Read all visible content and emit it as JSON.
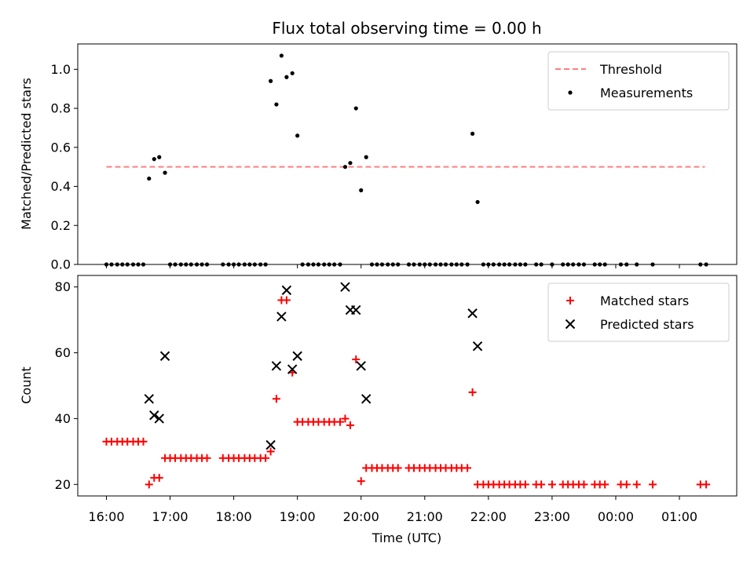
{
  "chart_data": {
    "type": "scatter",
    "title": "Flux total observing time = 0.00 h",
    "xlabel": "Time (UTC)",
    "xlim_hours": [
      15.55,
      25.9
    ],
    "x_ticks": [
      {
        "value": 16,
        "label": "16:00"
      },
      {
        "value": 17,
        "label": "17:00"
      },
      {
        "value": 18,
        "label": "18:00"
      },
      {
        "value": 19,
        "label": "19:00"
      },
      {
        "value": 20,
        "label": "20:00"
      },
      {
        "value": 21,
        "label": "21:00"
      },
      {
        "value": 22,
        "label": "22:00"
      },
      {
        "value": 23,
        "label": "23:00"
      },
      {
        "value": 24,
        "label": "00:00"
      },
      {
        "value": 25,
        "label": "01:00"
      }
    ],
    "panels": [
      {
        "id": "ratio",
        "ylabel": "Matched/Predicted stars",
        "ylim": [
          0,
          1.13
        ],
        "y_ticks": [
          {
            "value": 0,
            "label": "0.0"
          },
          {
            "value": 0.2,
            "label": "0.2"
          },
          {
            "value": 0.4,
            "label": "0.4"
          },
          {
            "value": 0.6,
            "label": "0.6"
          },
          {
            "value": 0.8,
            "label": "0.8"
          },
          {
            "value": 1.0,
            "label": "1.0"
          }
        ],
        "legend_position": "top-right",
        "threshold": {
          "name": "Threshold",
          "value": 0.5,
          "x_range": [
            16.0,
            25.4
          ],
          "color": "#ff7f7f"
        },
        "series": [
          {
            "name": "Measurements",
            "marker": "dot",
            "color": "#000000",
            "points": [
              [
                16.0,
                0
              ],
              [
                16.08,
                0
              ],
              [
                16.17,
                0
              ],
              [
                16.25,
                0
              ],
              [
                16.33,
                0
              ],
              [
                16.42,
                0
              ],
              [
                16.5,
                0
              ],
              [
                16.58,
                0
              ],
              [
                16.67,
                0.44
              ],
              [
                16.75,
                0.54
              ],
              [
                16.83,
                0.55
              ],
              [
                16.92,
                0.47
              ],
              [
                17.0,
                0
              ],
              [
                17.08,
                0
              ],
              [
                17.17,
                0
              ],
              [
                17.25,
                0
              ],
              [
                17.33,
                0
              ],
              [
                17.42,
                0
              ],
              [
                17.5,
                0
              ],
              [
                17.58,
                0
              ],
              [
                17.83,
                0
              ],
              [
                17.92,
                0
              ],
              [
                18.0,
                0
              ],
              [
                18.08,
                0
              ],
              [
                18.17,
                0
              ],
              [
                18.25,
                0
              ],
              [
                18.33,
                0
              ],
              [
                18.42,
                0
              ],
              [
                18.5,
                0
              ],
              [
                18.58,
                0.94
              ],
              [
                18.67,
                0.82
              ],
              [
                18.75,
                1.07
              ],
              [
                18.83,
                0.96
              ],
              [
                18.92,
                0.98
              ],
              [
                19.0,
                0.66
              ],
              [
                19.08,
                0
              ],
              [
                19.17,
                0
              ],
              [
                19.25,
                0
              ],
              [
                19.33,
                0
              ],
              [
                19.42,
                0
              ],
              [
                19.5,
                0
              ],
              [
                19.58,
                0
              ],
              [
                19.67,
                0
              ],
              [
                19.75,
                0.5
              ],
              [
                19.83,
                0.52
              ],
              [
                19.92,
                0.8
              ],
              [
                20.0,
                0.38
              ],
              [
                20.08,
                0.55
              ],
              [
                20.17,
                0
              ],
              [
                20.25,
                0
              ],
              [
                20.33,
                0
              ],
              [
                20.42,
                0
              ],
              [
                20.5,
                0
              ],
              [
                20.58,
                0
              ],
              [
                20.75,
                0
              ],
              [
                20.83,
                0
              ],
              [
                20.92,
                0
              ],
              [
                21.0,
                0
              ],
              [
                21.08,
                0
              ],
              [
                21.17,
                0
              ],
              [
                21.25,
                0
              ],
              [
                21.33,
                0
              ],
              [
                21.42,
                0
              ],
              [
                21.5,
                0
              ],
              [
                21.58,
                0
              ],
              [
                21.67,
                0
              ],
              [
                21.75,
                0.67
              ],
              [
                21.83,
                0.32
              ],
              [
                21.92,
                0
              ],
              [
                22.0,
                0
              ],
              [
                22.08,
                0
              ],
              [
                22.17,
                0
              ],
              [
                22.25,
                0
              ],
              [
                22.33,
                0
              ],
              [
                22.42,
                0
              ],
              [
                22.5,
                0
              ],
              [
                22.58,
                0
              ],
              [
                22.75,
                0
              ],
              [
                22.83,
                0
              ],
              [
                23.0,
                0
              ],
              [
                23.17,
                0
              ],
              [
                23.25,
                0
              ],
              [
                23.33,
                0
              ],
              [
                23.42,
                0
              ],
              [
                23.5,
                0
              ],
              [
                23.67,
                0
              ],
              [
                23.75,
                0
              ],
              [
                23.83,
                0
              ],
              [
                24.08,
                0
              ],
              [
                24.17,
                0
              ],
              [
                24.33,
                0
              ],
              [
                24.58,
                0
              ],
              [
                25.33,
                0
              ],
              [
                25.42,
                0
              ]
            ]
          }
        ]
      },
      {
        "id": "counts",
        "ylabel": "Count",
        "ylim": [
          16.5,
          83.5
        ],
        "y_ticks": [
          {
            "value": 20,
            "label": "20"
          },
          {
            "value": 40,
            "label": "40"
          },
          {
            "value": 60,
            "label": "60"
          },
          {
            "value": 80,
            "label": "80"
          }
        ],
        "legend_position": "top-right",
        "series": [
          {
            "name": "Matched stars",
            "marker": "plus",
            "color": "#ff0000",
            "points": [
              [
                16.0,
                33
              ],
              [
                16.08,
                33
              ],
              [
                16.17,
                33
              ],
              [
                16.25,
                33
              ],
              [
                16.33,
                33
              ],
              [
                16.42,
                33
              ],
              [
                16.5,
                33
              ],
              [
                16.58,
                33
              ],
              [
                16.67,
                20
              ],
              [
                16.75,
                22
              ],
              [
                16.83,
                22
              ],
              [
                16.92,
                28
              ],
              [
                17.0,
                28
              ],
              [
                17.08,
                28
              ],
              [
                17.17,
                28
              ],
              [
                17.25,
                28
              ],
              [
                17.33,
                28
              ],
              [
                17.42,
                28
              ],
              [
                17.5,
                28
              ],
              [
                17.58,
                28
              ],
              [
                17.83,
                28
              ],
              [
                17.92,
                28
              ],
              [
                18.0,
                28
              ],
              [
                18.08,
                28
              ],
              [
                18.17,
                28
              ],
              [
                18.25,
                28
              ],
              [
                18.33,
                28
              ],
              [
                18.42,
                28
              ],
              [
                18.5,
                28
              ],
              [
                18.58,
                30
              ],
              [
                18.67,
                46
              ],
              [
                18.75,
                76
              ],
              [
                18.83,
                76
              ],
              [
                18.92,
                54
              ],
              [
                19.0,
                39
              ],
              [
                19.08,
                39
              ],
              [
                19.17,
                39
              ],
              [
                19.25,
                39
              ],
              [
                19.33,
                39
              ],
              [
                19.42,
                39
              ],
              [
                19.5,
                39
              ],
              [
                19.58,
                39
              ],
              [
                19.67,
                39
              ],
              [
                19.75,
                40
              ],
              [
                19.83,
                38
              ],
              [
                19.92,
                58
              ],
              [
                20.0,
                21
              ],
              [
                20.08,
                25
              ],
              [
                20.17,
                25
              ],
              [
                20.25,
                25
              ],
              [
                20.33,
                25
              ],
              [
                20.42,
                25
              ],
              [
                20.5,
                25
              ],
              [
                20.58,
                25
              ],
              [
                20.75,
                25
              ],
              [
                20.83,
                25
              ],
              [
                20.92,
                25
              ],
              [
                21.0,
                25
              ],
              [
                21.08,
                25
              ],
              [
                21.17,
                25
              ],
              [
                21.25,
                25
              ],
              [
                21.33,
                25
              ],
              [
                21.42,
                25
              ],
              [
                21.5,
                25
              ],
              [
                21.58,
                25
              ],
              [
                21.67,
                25
              ],
              [
                21.75,
                48
              ],
              [
                21.83,
                20
              ],
              [
                21.92,
                20
              ],
              [
                22.0,
                20
              ],
              [
                22.08,
                20
              ],
              [
                22.17,
                20
              ],
              [
                22.25,
                20
              ],
              [
                22.33,
                20
              ],
              [
                22.42,
                20
              ],
              [
                22.5,
                20
              ],
              [
                22.58,
                20
              ],
              [
                22.75,
                20
              ],
              [
                22.83,
                20
              ],
              [
                23.0,
                20
              ],
              [
                23.17,
                20
              ],
              [
                23.25,
                20
              ],
              [
                23.33,
                20
              ],
              [
                23.42,
                20
              ],
              [
                23.5,
                20
              ],
              [
                23.67,
                20
              ],
              [
                23.75,
                20
              ],
              [
                23.83,
                20
              ],
              [
                24.08,
                20
              ],
              [
                24.17,
                20
              ],
              [
                24.33,
                20
              ],
              [
                24.58,
                20
              ],
              [
                25.33,
                20
              ],
              [
                25.42,
                20
              ]
            ]
          },
          {
            "name": "Predicted stars",
            "marker": "x",
            "color": "#000000",
            "points": [
              [
                16.67,
                46
              ],
              [
                16.75,
                41
              ],
              [
                16.83,
                40
              ],
              [
                16.92,
                59
              ],
              [
                18.58,
                32
              ],
              [
                18.67,
                56
              ],
              [
                18.75,
                71
              ],
              [
                18.83,
                79
              ],
              [
                18.92,
                55
              ],
              [
                19.0,
                59
              ],
              [
                19.75,
                80
              ],
              [
                19.83,
                73
              ],
              [
                19.92,
                73
              ],
              [
                20.0,
                56
              ],
              [
                20.08,
                46
              ],
              [
                21.75,
                72
              ],
              [
                21.83,
                62
              ]
            ]
          }
        ]
      }
    ]
  }
}
